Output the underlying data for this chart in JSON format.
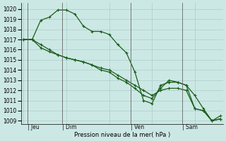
{
  "background_color": "#cce8e4",
  "grid_color": "#aaccca",
  "line_color": "#1a5c1a",
  "title": "Pression niveau de la mer( hPa )",
  "ylim_min": 1008.7,
  "ylim_max": 1020.6,
  "yticks": [
    1009,
    1010,
    1011,
    1012,
    1013,
    1014,
    1015,
    1016,
    1017,
    1018,
    1019,
    1020
  ],
  "day_labels": [
    "Jeu",
    "Dim",
    "Ven",
    "Sam"
  ],
  "xlim_min": 0,
  "xlim_max": 23,
  "series1_x": [
    0,
    1,
    2,
    3,
    4,
    5,
    6,
    7,
    8,
    9,
    10,
    11,
    12,
    13,
    14,
    15,
    16,
    17,
    18,
    19,
    20,
    21,
    22,
    23
  ],
  "series1_y": [
    1017.0,
    1017.0,
    1018.9,
    1019.2,
    1019.9,
    1019.9,
    1019.5,
    1018.3,
    1017.8,
    1017.8,
    1017.5,
    1016.5,
    1015.7,
    1013.8,
    1011.0,
    1010.7,
    1012.5,
    1012.8,
    1012.8,
    1012.5,
    1010.2,
    1010.0,
    1009.0,
    1009.2
  ],
  "series2_x": [
    0,
    1,
    2,
    3,
    4,
    5,
    6,
    7,
    8,
    9,
    10,
    11,
    12,
    13,
    14,
    15,
    16,
    17,
    18,
    19,
    20,
    21,
    22,
    23
  ],
  "series2_y": [
    1017.0,
    1017.0,
    1016.5,
    1016.0,
    1015.5,
    1015.2,
    1015.0,
    1014.8,
    1014.5,
    1014.2,
    1014.0,
    1013.5,
    1013.0,
    1012.5,
    1012.0,
    1011.5,
    1012.0,
    1012.2,
    1012.2,
    1012.0,
    1010.2,
    1010.0,
    1009.0,
    1009.2
  ],
  "series3_x": [
    0,
    1,
    2,
    3,
    4,
    5,
    6,
    7,
    8,
    9,
    10,
    11,
    12,
    13,
    14,
    15,
    16,
    17,
    18,
    19,
    20,
    21,
    22,
    23
  ],
  "series3_y": [
    1017.0,
    1017.0,
    1016.2,
    1015.8,
    1015.5,
    1015.2,
    1015.0,
    1014.8,
    1014.5,
    1014.0,
    1013.8,
    1013.2,
    1012.8,
    1012.2,
    1011.5,
    1011.2,
    1012.2,
    1013.0,
    1012.8,
    1012.5,
    1011.5,
    1010.2,
    1009.0,
    1009.5
  ]
}
